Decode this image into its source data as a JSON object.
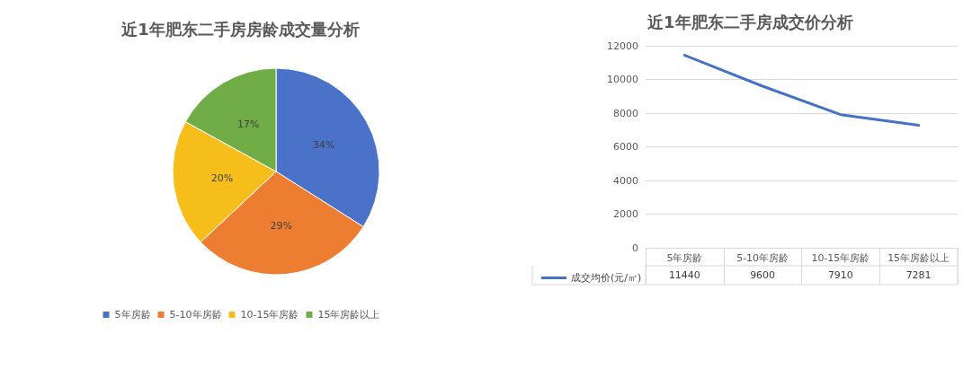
{
  "chart_data": [
    {
      "type": "pie",
      "title": "近1年肥东二手房房龄成交量分析",
      "categories": [
        "5年房龄",
        "5-10年房龄",
        "10-15年房龄",
        "15年房龄以上"
      ],
      "values": [
        34,
        29,
        20,
        17
      ],
      "colors": [
        "#4a72c8",
        "#ed7d31",
        "#f5be1a",
        "#70ad47"
      ],
      "value_labels": [
        "34%",
        "29%",
        "20%",
        "17%"
      ],
      "legend": "bottom"
    },
    {
      "type": "line",
      "title": "近1年肥东二手房成交价分析",
      "categories": [
        "5年房龄",
        "5-10年房龄",
        "10-15年房龄",
        "15年房龄以上"
      ],
      "series": [
        {
          "name": "成交均价(元/㎡)",
          "color": "#4472c4",
          "values": [
            11440,
            9600,
            7910,
            7281
          ]
        }
      ],
      "ylim": [
        0,
        12000
      ],
      "yticks": [
        0,
        2000,
        4000,
        6000,
        8000,
        10000,
        12000
      ],
      "grid": "y",
      "marker": "none",
      "line_style": "solid",
      "data_labels": true,
      "legend": "bottom left"
    }
  ]
}
